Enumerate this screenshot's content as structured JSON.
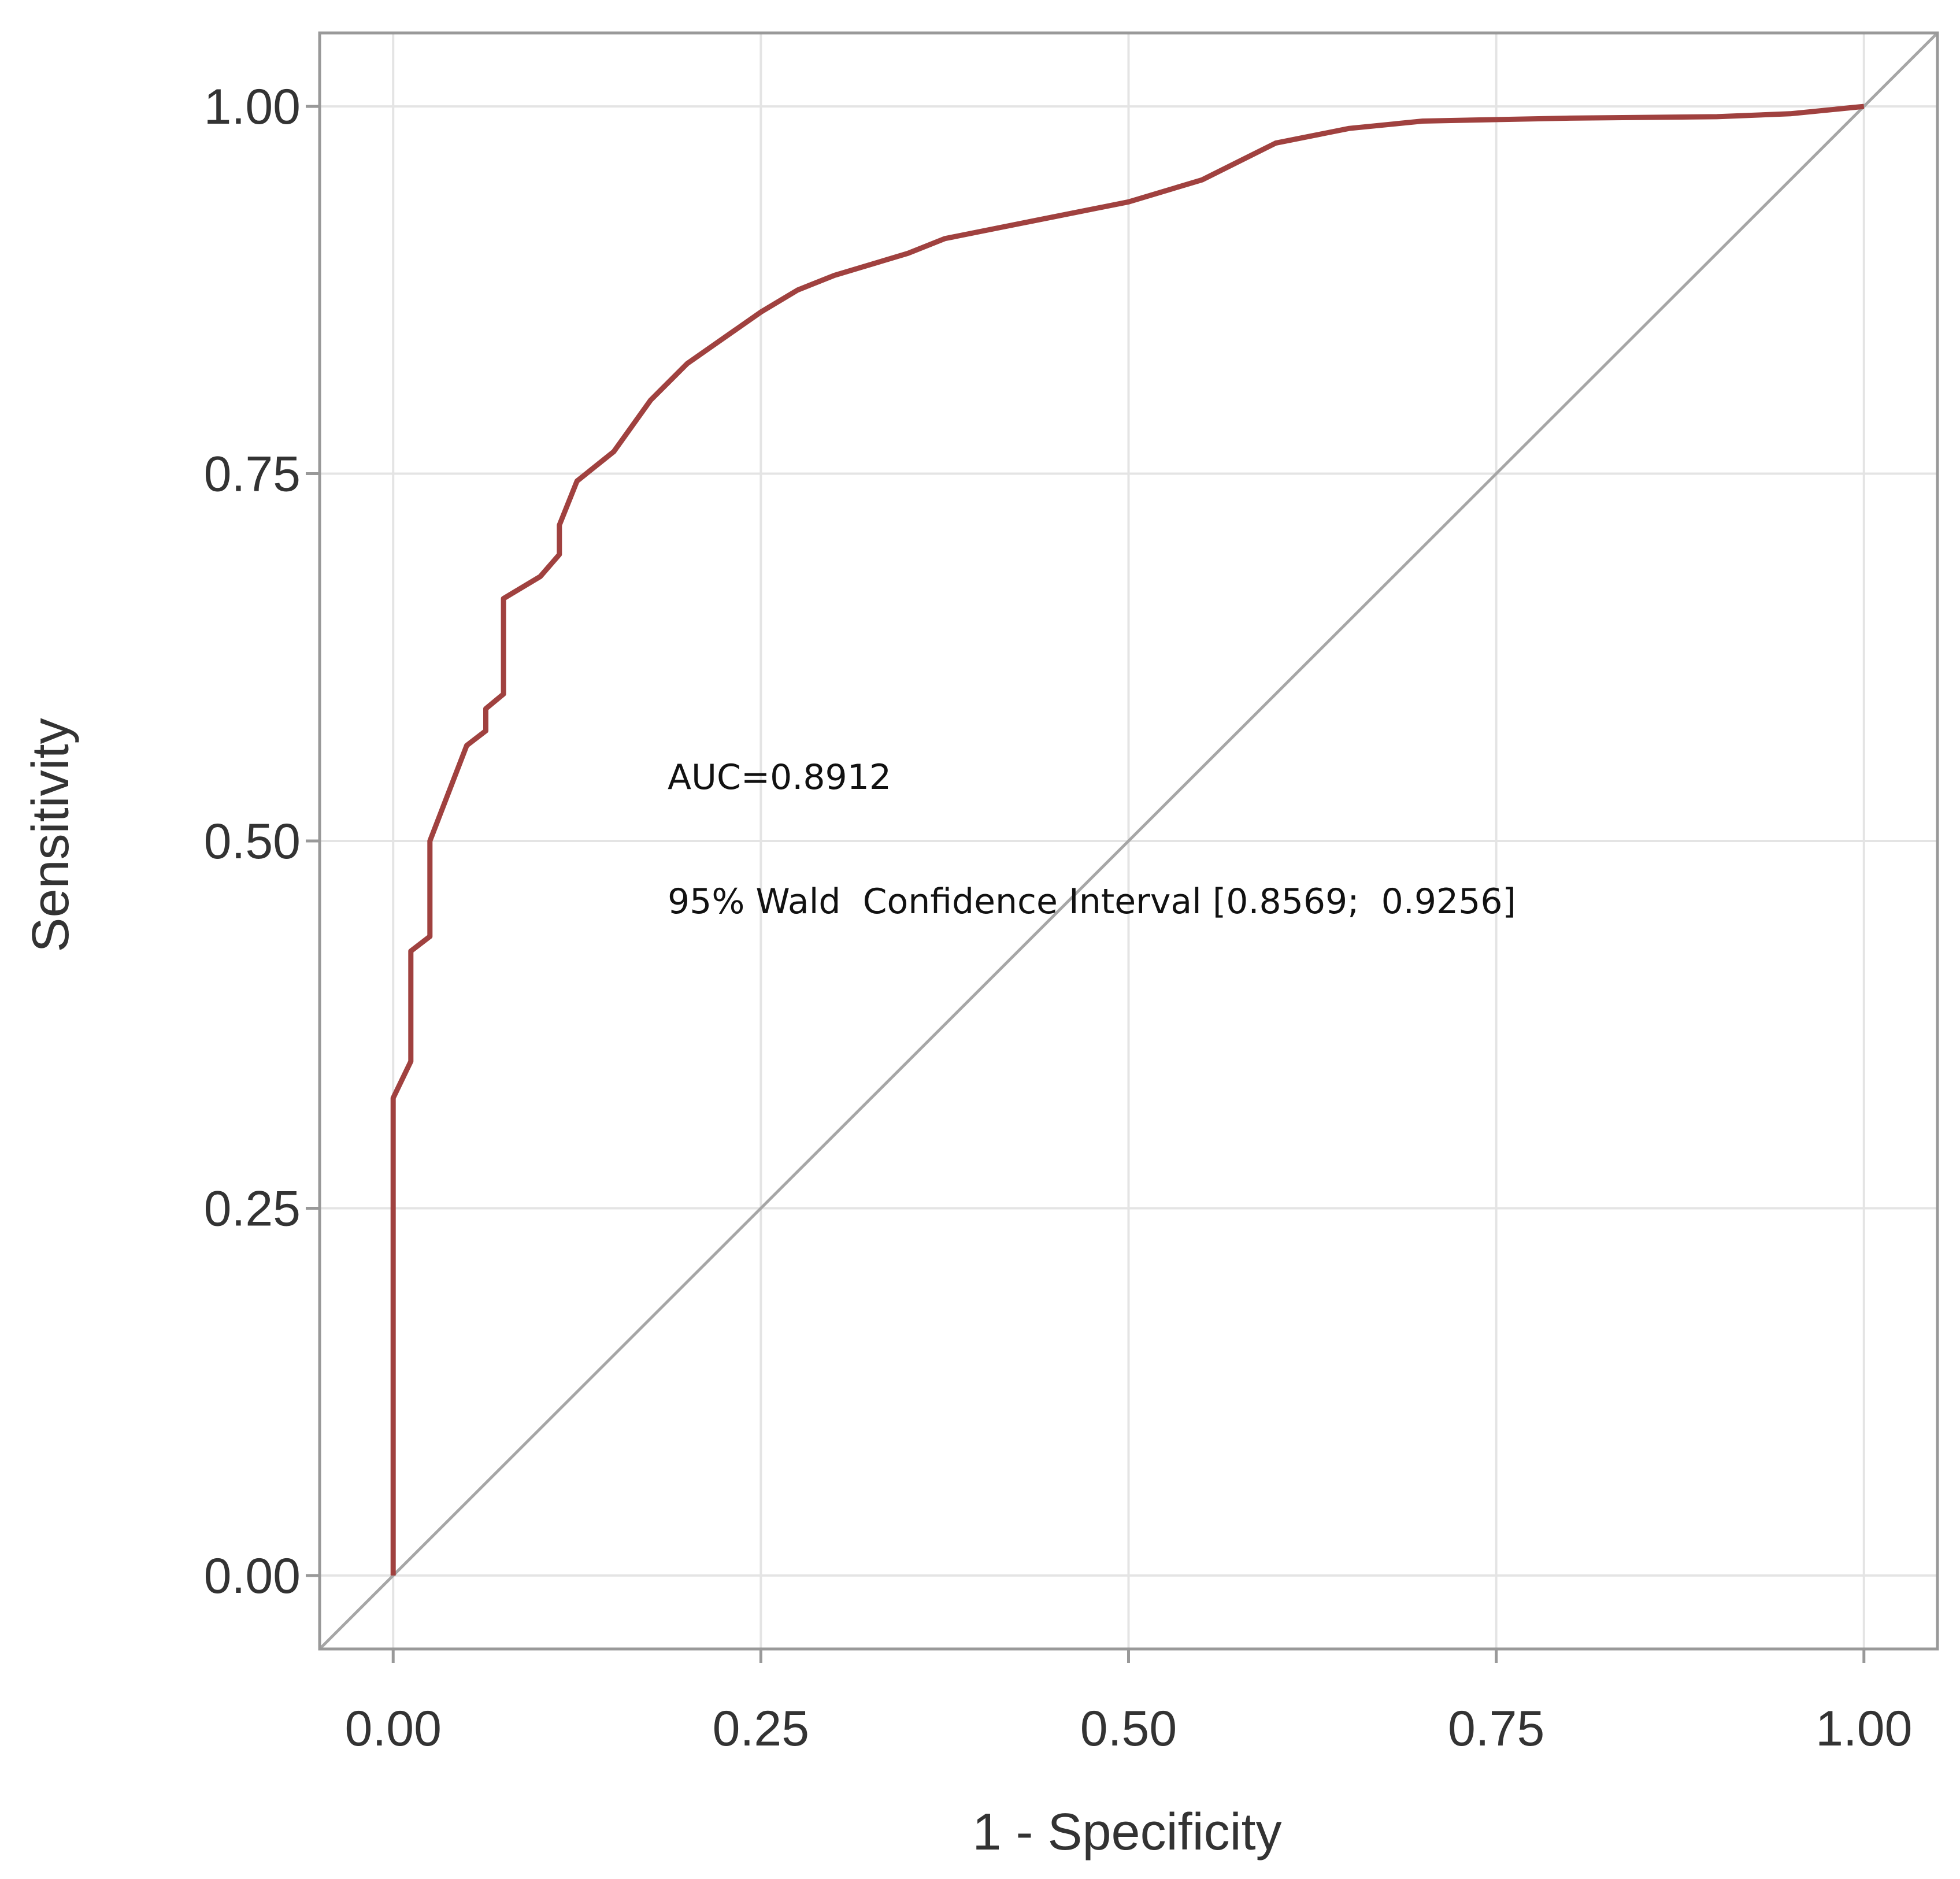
{
  "chart_data": {
    "type": "line",
    "xlabel": "1 - Specificity",
    "ylabel": "Sensitivity",
    "xlim": [
      -0.05,
      1.05
    ],
    "ylim": [
      -0.05,
      1.05
    ],
    "x_ticks": [
      "0.00",
      "0.25",
      "0.50",
      "0.75",
      "1.00"
    ],
    "y_ticks": [
      "0.00",
      "0.25",
      "0.50",
      "0.75",
      "1.00"
    ],
    "x_tick_values": [
      0,
      0.25,
      0.5,
      0.75,
      1.0
    ],
    "y_tick_values": [
      0,
      0.25,
      0.5,
      0.75,
      1.0
    ],
    "grid": true,
    "annotations": [
      "AUC=0.8912",
      "95% Wald  Confidence Interval [0.8569;  0.9256]"
    ],
    "reference_line": {
      "x": [
        0,
        1
      ],
      "y": [
        0,
        1
      ],
      "color": "#a6a6a6"
    },
    "series": [
      {
        "color": "#a0413f",
        "x": [
          0.0,
          0.0,
          0.012,
          0.012,
          0.025,
          0.025,
          0.05,
          0.063,
          0.063,
          0.075,
          0.075,
          0.1,
          0.113,
          0.113,
          0.125,
          0.15,
          0.175,
          0.19,
          0.2,
          0.25,
          0.275,
          0.3,
          0.35,
          0.375,
          0.4,
          0.45,
          0.5,
          0.55,
          0.6,
          0.65,
          0.7,
          0.8,
          0.9,
          0.95,
          1.0
        ],
        "y": [
          0.0,
          0.325,
          0.35,
          0.425,
          0.435,
          0.5,
          0.565,
          0.575,
          0.59,
          0.6,
          0.665,
          0.68,
          0.695,
          0.715,
          0.745,
          0.765,
          0.8,
          0.815,
          0.825,
          0.86,
          0.875,
          0.885,
          0.9,
          0.91,
          0.915,
          0.925,
          0.935,
          0.95,
          0.975,
          0.985,
          0.99,
          0.992,
          0.993,
          0.995,
          1.0
        ]
      }
    ]
  },
  "colors": {
    "curve": "#a0413f",
    "reference": "#a6a6a6",
    "grid": "#e4e4e4",
    "frame": "#999999"
  }
}
